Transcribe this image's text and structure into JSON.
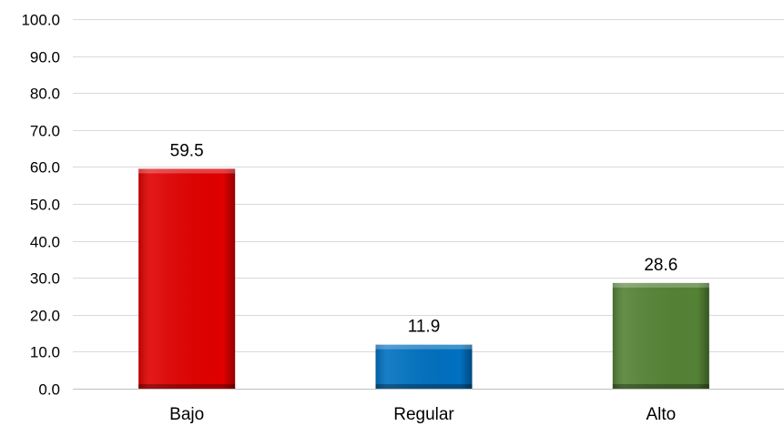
{
  "chart_data": {
    "type": "bar",
    "categories": [
      "Bajo",
      "Regular",
      "Alto"
    ],
    "values": [
      59.5,
      11.9,
      28.6
    ],
    "value_labels": [
      "59.5",
      "11.9",
      "28.6"
    ],
    "colors": [
      "#e00000",
      "#0070c0",
      "#548235"
    ],
    "title": "",
    "xlabel": "",
    "ylabel": "",
    "ylim": [
      0,
      100
    ],
    "yticks": [
      0,
      10,
      20,
      30,
      40,
      50,
      60,
      70,
      80,
      90,
      100
    ],
    "ytick_labels": [
      "0.0",
      "10.0",
      "20.0",
      "30.0",
      "40.0",
      "50.0",
      "60.0",
      "70.0",
      "80.0",
      "90.0",
      "100.0"
    ],
    "grid": true,
    "legend": "none"
  }
}
